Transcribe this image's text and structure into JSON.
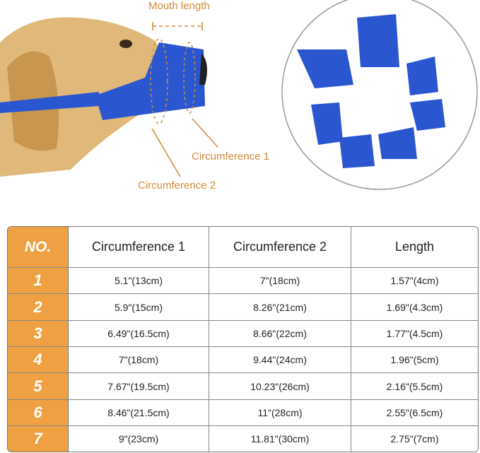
{
  "labels": {
    "mouth_length": "Mouth length",
    "circumference_1": "Circumference 1",
    "circumference_2": "Circumference 2"
  },
  "colors": {
    "accent": "#efa042",
    "muzzle": "#2a56d0",
    "label": "#d08a3a"
  },
  "table": {
    "headers": [
      "NO.",
      "Circumference 1",
      "Circumference 2",
      "Length"
    ],
    "rows": [
      [
        "1",
        "5.1\"(13cm)",
        "7\"(18cm)",
        "1.57\"(4cm)"
      ],
      [
        "2",
        "5.9\"(15cm)",
        "8.26\"(21cm)",
        "1.69\"(4.3cm)"
      ],
      [
        "3",
        "6.49\"(16.5cm)",
        "8.66\"(22cm)",
        "1.77\"(4.5cm)"
      ],
      [
        "4",
        "7\"(18cm)",
        "9.44\"(24cm)",
        "1.96\"(5cm)"
      ],
      [
        "5",
        "7.67\"(19.5cm)",
        "10.23\"(26cm)",
        "2.16\"(5.5cm)"
      ],
      [
        "6",
        "8.46\"(21.5cm)",
        "11\"(28cm)",
        "2.55\"(6.5cm)"
      ],
      [
        "7",
        "9\"(23cm)",
        "11.81\"(30cm)",
        "2.75\"(7cm)"
      ]
    ]
  }
}
